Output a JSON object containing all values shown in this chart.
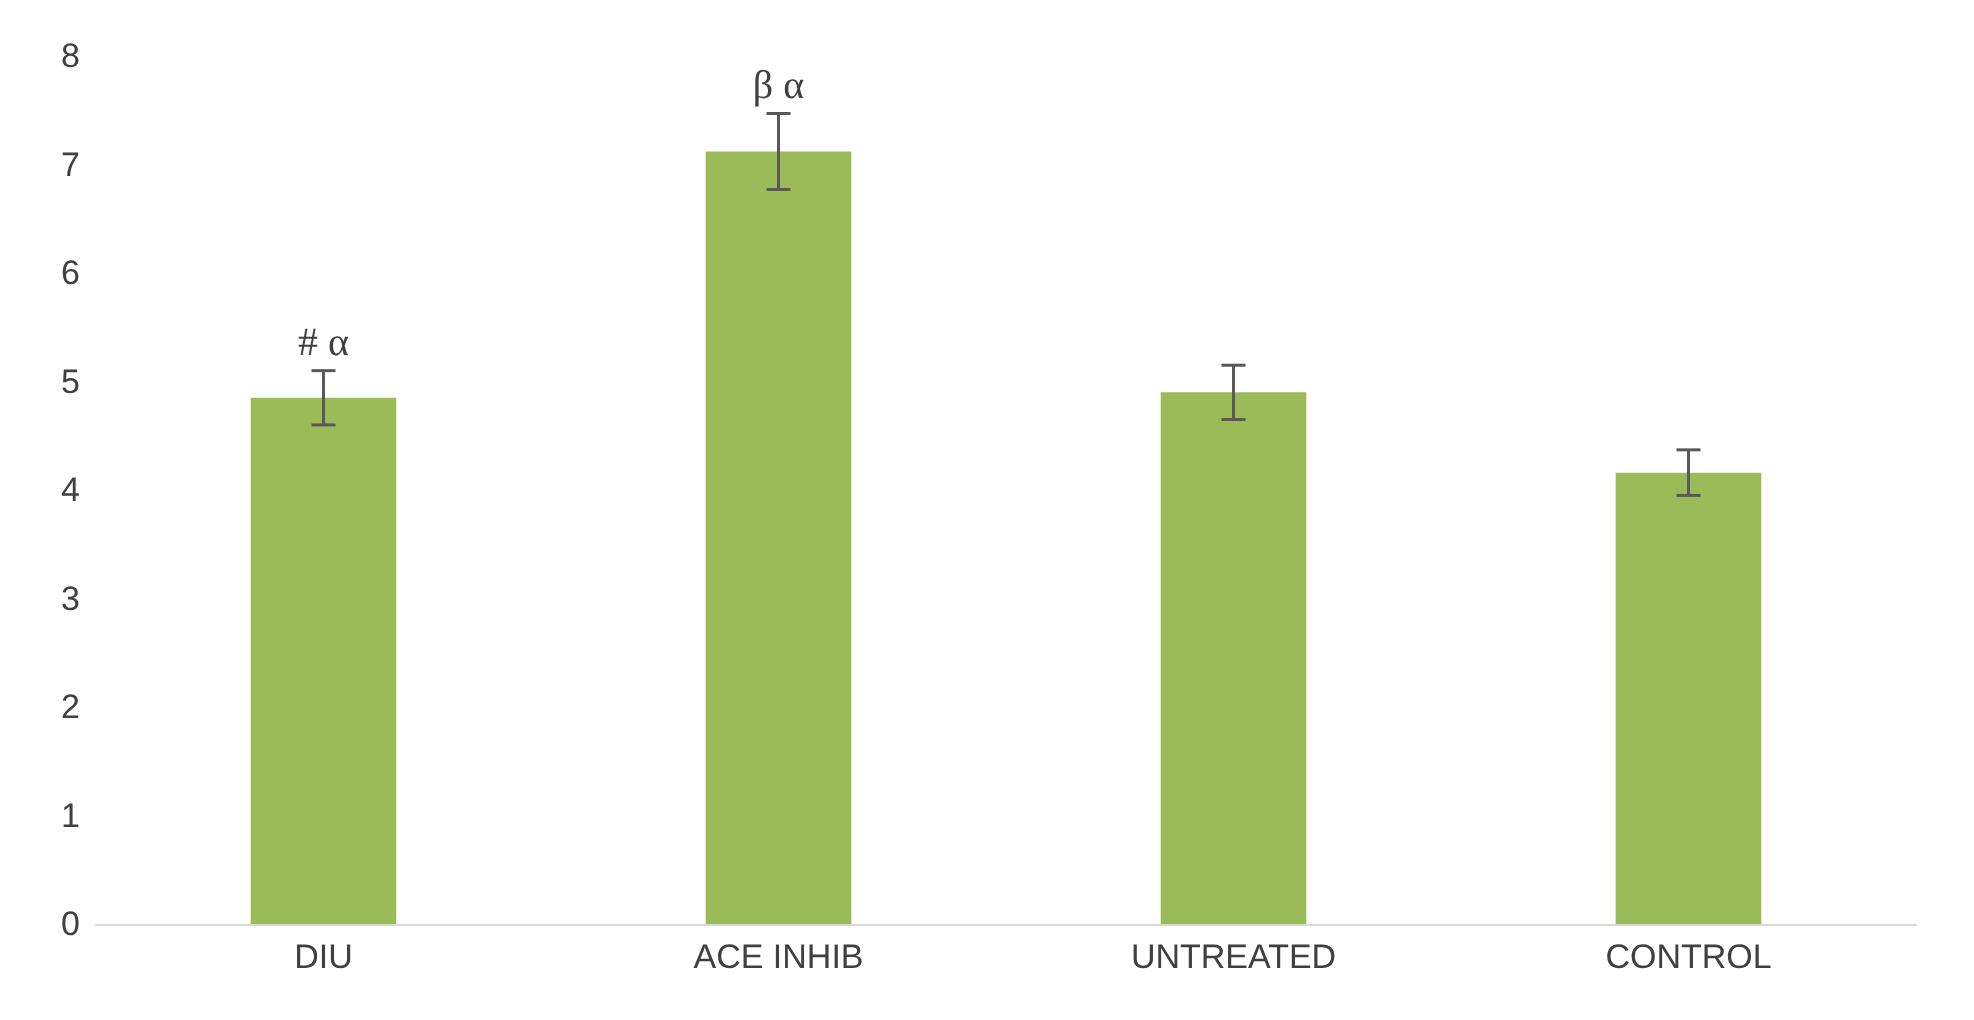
{
  "chart_data": {
    "type": "bar",
    "categories": [
      "DIU",
      "ACE INHIB",
      "UNTREATED",
      "CONTROL"
    ],
    "values": [
      4.85,
      7.12,
      4.9,
      4.16
    ],
    "errors": [
      0.25,
      0.35,
      0.25,
      0.21
    ],
    "color": "#9bbb59",
    "ylim": [
      0,
      8
    ],
    "yticks": [
      0,
      1,
      2,
      3,
      4,
      5,
      6,
      7,
      8
    ],
    "grid": false,
    "annotations": [
      "# α",
      "β α"
    ]
  }
}
